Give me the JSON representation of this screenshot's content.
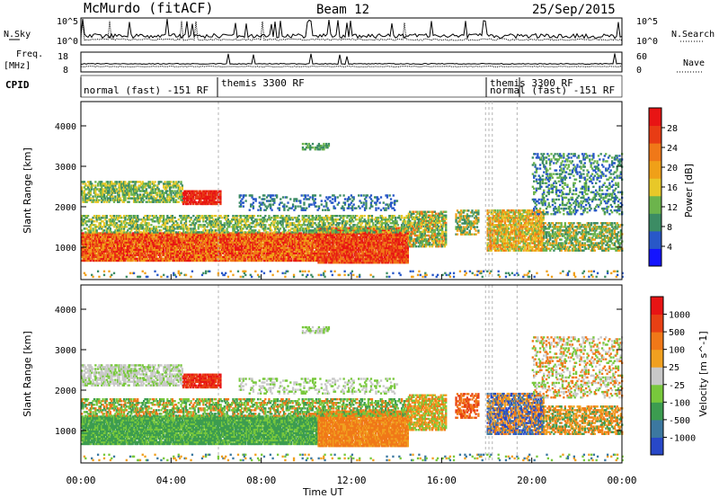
{
  "header": {
    "station": "McMurdo (fitACF)",
    "beam": "Beam 12",
    "date": "25/Sep/2015"
  },
  "panels": {
    "noise": {
      "left_label": "N.Sky",
      "right_label": "N.Search",
      "ticks_left": [
        "10^5",
        "10^0"
      ],
      "ticks_right": [
        "10^5",
        "10^0"
      ]
    },
    "freq": {
      "left_label_1": "Freq.",
      "left_label_2": "[MHz]",
      "right_label": "Nave",
      "ticks_left": [
        "18",
        "8"
      ],
      "ticks_right": [
        "60",
        "0"
      ]
    },
    "cpid": {
      "label": "CPID",
      "segments": [
        "normal (fast) -151 RF",
        "themis 3300 RF",
        "themis 3300 RF",
        "normal (fast) -151 RF"
      ]
    }
  },
  "chart_data": [
    {
      "type": "heatmap",
      "name": "power",
      "ylabel": "Slant Range [km]",
      "yticks": [
        "1000",
        "2000",
        "3000",
        "4000"
      ],
      "ylim": [
        200,
        4600
      ],
      "xlim_hours": [
        0,
        24
      ],
      "colorbar": {
        "label": "Power [dB]",
        "ticks": [
          "4",
          "8",
          "12",
          "16",
          "20",
          "24",
          "28"
        ],
        "range": [
          0,
          32
        ],
        "colors": [
          "#1414ff",
          "#2858c8",
          "#3c8c64",
          "#6cb44c",
          "#e8c828",
          "#f0a018",
          "#f07818",
          "#e83c14",
          "#e81414"
        ]
      }
    },
    {
      "type": "heatmap",
      "name": "velocity",
      "ylabel": "Slant Range [km]",
      "yticks": [
        "1000",
        "2000",
        "3000",
        "4000"
      ],
      "ylim": [
        200,
        4600
      ],
      "xlim_hours": [
        0,
        24
      ],
      "colorbar": {
        "label": "Velocity [m s^-1]",
        "ticks": [
          "1000",
          "500",
          "100",
          "25",
          "-25",
          "-100",
          "-500",
          "-1000"
        ],
        "colors": [
          "#2848c8",
          "#3c78a0",
          "#3c9c50",
          "#78c83c",
          "#c8c8c8",
          "#f0a020",
          "#f07818",
          "#e84014",
          "#e81414"
        ]
      }
    }
  ],
  "xaxis": {
    "label": "Time UT",
    "ticks": [
      "00:00",
      "04:00",
      "08:00",
      "12:00",
      "16:00",
      "20:00",
      "00:00"
    ]
  }
}
